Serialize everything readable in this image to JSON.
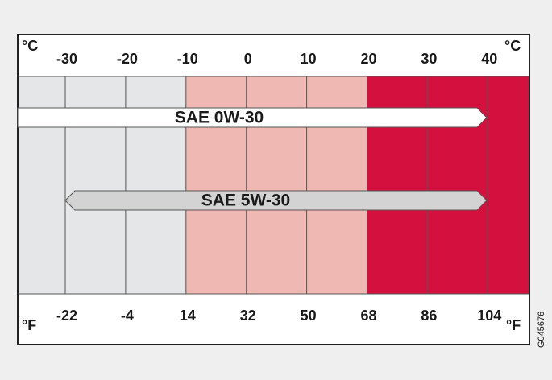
{
  "diagram": {
    "celsius_unit_left": "°C",
    "celsius_unit_right": "°C",
    "fahrenheit_unit_left": "°F",
    "fahrenheit_unit_right": "°F",
    "celsius_labels": [
      -30,
      -20,
      -10,
      0,
      10,
      20,
      30,
      40
    ],
    "fahrenheit_labels": [
      -22,
      -4,
      14,
      32,
      50,
      68,
      86,
      104
    ],
    "oils": [
      "SAE 0W-30",
      "SAE 5W-30"
    ],
    "code": "G045676"
  }
}
